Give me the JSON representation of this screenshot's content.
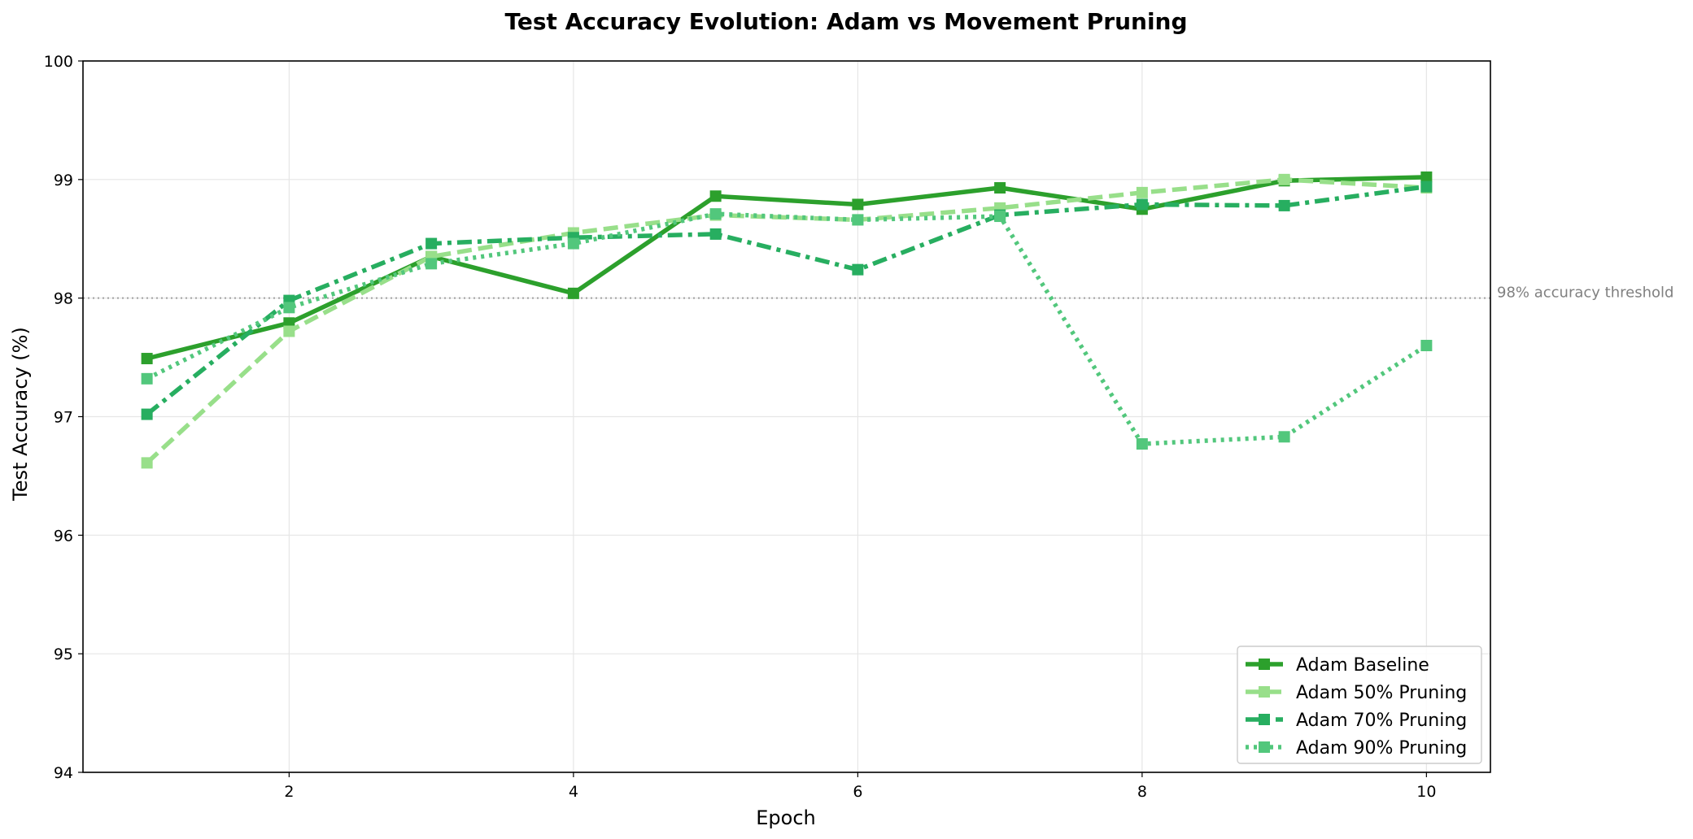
{
  "chart_data": {
    "type": "line",
    "title": "Test Accuracy Evolution: Adam vs Movement Pruning",
    "xlabel": "Epoch",
    "ylabel": "Test Accuracy (%)",
    "xlim": [
      0.55,
      10.45
    ],
    "ylim": [
      94,
      100
    ],
    "xticks": [
      2,
      4,
      6,
      8,
      10
    ],
    "yticks": [
      94,
      95,
      96,
      97,
      98,
      99,
      100
    ],
    "grid": true,
    "legend_position": "lower-right",
    "x": [
      1,
      2,
      3,
      4,
      5,
      6,
      7,
      8,
      9,
      10
    ],
    "series": [
      {
        "name": "Adam Baseline",
        "color": "#2ca02c",
        "dash": "solid",
        "marker": "square",
        "values": [
          97.49,
          97.79,
          98.35,
          98.04,
          98.86,
          98.79,
          98.93,
          98.75,
          98.99,
          99.02
        ]
      },
      {
        "name": "Adam 50% Pruning",
        "color": "#98df8a",
        "dash": "dashed",
        "marker": "square",
        "values": [
          96.61,
          97.72,
          98.35,
          98.55,
          98.7,
          98.66,
          98.76,
          98.89,
          99.0,
          98.93
        ]
      },
      {
        "name": "Adam 70% Pruning",
        "color": "#27ae60",
        "dash": "dashdot",
        "marker": "square",
        "values": [
          97.02,
          97.98,
          98.46,
          98.51,
          98.54,
          98.24,
          98.7,
          98.79,
          98.78,
          98.94
        ]
      },
      {
        "name": "Adam 90% Pruning",
        "color": "#52c77c",
        "dash": "dotted",
        "marker": "square",
        "values": [
          97.32,
          97.92,
          98.29,
          98.46,
          98.71,
          98.66,
          98.69,
          96.77,
          96.83,
          97.6
        ]
      }
    ],
    "reference_line": {
      "y": 98,
      "label": "98% accuracy threshold",
      "color": "#a0a0a0",
      "label_color": "#808080"
    }
  }
}
